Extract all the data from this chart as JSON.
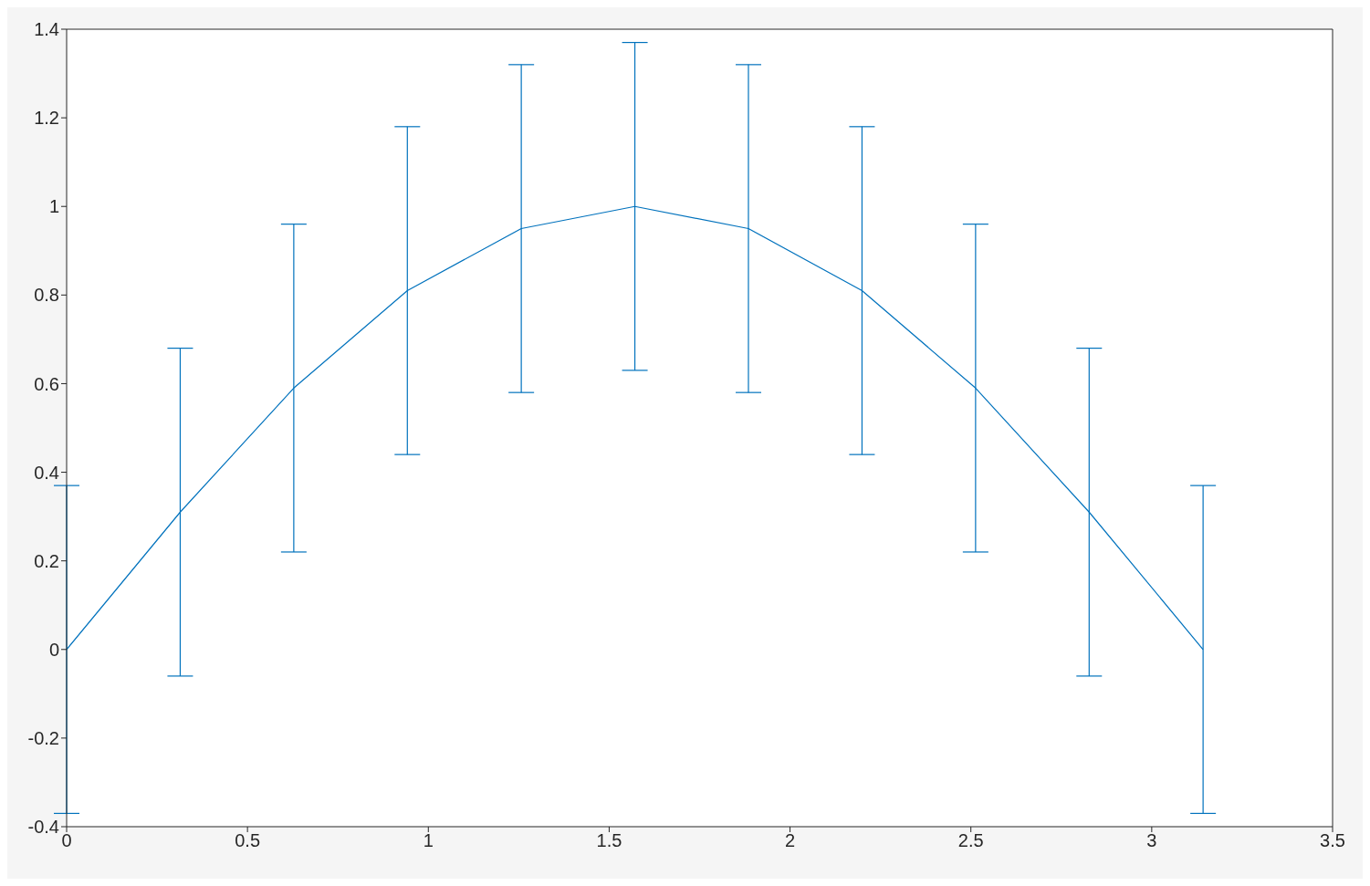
{
  "chart_data": {
    "type": "line",
    "x": [
      0,
      0.314,
      0.628,
      0.942,
      1.257,
      1.571,
      1.885,
      2.199,
      2.513,
      2.827,
      3.142
    ],
    "series": [
      {
        "color": "#0072bd",
        "values": [
          0,
          0.31,
          0.59,
          0.81,
          0.95,
          1,
          0.95,
          0.81,
          0.59,
          0.31,
          0
        ],
        "errors": [
          0.37,
          0.37,
          0.37,
          0.37,
          0.37,
          0.37,
          0.37,
          0.37,
          0.37,
          0.37,
          0.37
        ]
      }
    ],
    "xlim": [
      0,
      3.5
    ],
    "xticks": [
      0,
      0.5,
      1,
      1.5,
      2,
      2.5,
      3,
      3.5
    ],
    "ylim": [
      -0.4,
      1.4
    ],
    "yticks": [
      -0.4,
      -0.2,
      0,
      0.2,
      0.4,
      0.6,
      0.8,
      1,
      1.2,
      1.4
    ],
    "grid": false,
    "marker": "none",
    "line_style": "solid"
  }
}
